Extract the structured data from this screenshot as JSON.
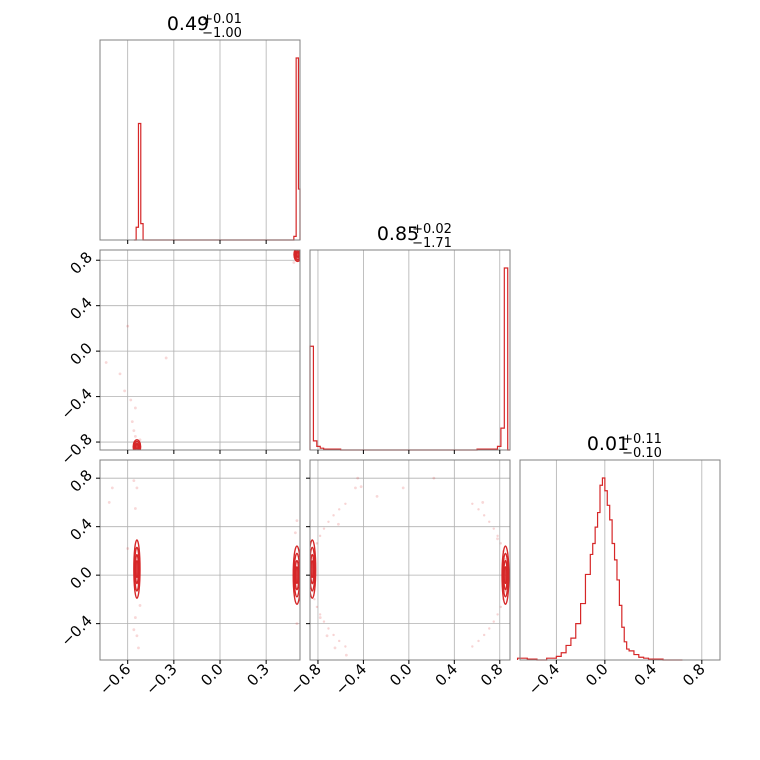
{
  "chart_data": {
    "type": "corner",
    "color": "#d62728",
    "grid": true,
    "parameters": [
      {
        "range": [
          -0.78,
          0.52
        ],
        "ticks": [
          -0.6,
          -0.3,
          0.0,
          0.3
        ],
        "tick_labels": [
          "−0.6",
          "−0.3",
          "0.0",
          "0.3"
        ],
        "summary": {
          "median": "0.49",
          "plus": "+0.01",
          "minus": "−1.00"
        },
        "histogram": {
          "bin_edges": [
            -0.56,
            -0.545,
            -0.53,
            -0.515,
            -0.5,
            -0.485,
            0.48,
            0.495,
            0.51,
            0.52
          ],
          "counts": [
            0.0,
            0.07,
            0.64,
            0.09,
            0.0,
            0.0,
            0.02,
            1.0,
            0.28
          ]
        }
      },
      {
        "range": [
          -0.87,
          0.89
        ],
        "ticks": [
          -0.8,
          -0.4,
          0.0,
          0.4,
          0.8
        ],
        "tick_labels": [
          "−0.8",
          "−0.4",
          "0.0",
          "0.4",
          "0.8"
        ],
        "summary": {
          "median": "0.85",
          "plus": "+0.02",
          "minus": "−1.71"
        },
        "histogram": {
          "bin_edges": [
            -0.87,
            -0.84,
            -0.81,
            -0.78,
            -0.75,
            -0.6,
            -0.4,
            0.4,
            0.6,
            0.78,
            0.81,
            0.84,
            0.87,
            0.89
          ],
          "counts": [
            0.57,
            0.05,
            0.02,
            0.01,
            0.005,
            0.0,
            0.0,
            0.0,
            0.005,
            0.02,
            0.12,
            1.0,
            0.0
          ]
        }
      },
      {
        "range": [
          -0.7,
          0.95
        ],
        "ticks": [
          -0.4,
          0.0,
          0.4,
          0.8
        ],
        "tick_labels": [
          "−0.4",
          "0.0",
          "0.4",
          "0.8"
        ],
        "y_ticks": [
          -0.4,
          0.0,
          0.4,
          0.8
        ],
        "y_range": [
          -0.7,
          0.95
        ],
        "summary": {
          "median": "0.01",
          "plus": "+0.11",
          "minus": "−0.10"
        },
        "histogram": {
          "bin_edges": [
            -0.72,
            -0.64,
            -0.56,
            -0.48,
            -0.4,
            -0.36,
            -0.32,
            -0.28,
            -0.24,
            -0.2,
            -0.16,
            -0.12,
            -0.1,
            -0.08,
            -0.06,
            -0.04,
            -0.02,
            0.0,
            0.02,
            0.04,
            0.06,
            0.08,
            0.1,
            0.12,
            0.14,
            0.16,
            0.18,
            0.2,
            0.24,
            0.28,
            0.32,
            0.36,
            0.4,
            0.48,
            0.56,
            0.64
          ],
          "counts": [
            0.01,
            0.005,
            0.0,
            0.01,
            0.02,
            0.04,
            0.08,
            0.12,
            0.2,
            0.31,
            0.47,
            0.58,
            0.64,
            0.73,
            0.81,
            0.96,
            1.0,
            0.93,
            0.85,
            0.77,
            0.64,
            0.55,
            0.44,
            0.3,
            0.18,
            0.1,
            0.06,
            0.05,
            0.03,
            0.015,
            0.01,
            0.005,
            0.005,
            0.0,
            0.0
          ]
        }
      }
    ],
    "pairs": [
      {
        "row": 1,
        "col": 0,
        "clusters": [
          {
            "x": -0.54,
            "y": -0.84,
            "sx": 0.012,
            "sy": 0.03
          },
          {
            "x": 0.505,
            "y": 0.85,
            "sx": 0.012,
            "sy": 0.03
          }
        ],
        "scatter": [
          [
            -0.6,
            0.22
          ],
          [
            -0.65,
            -0.2
          ],
          [
            -0.62,
            -0.35
          ],
          [
            -0.58,
            -0.43
          ],
          [
            -0.55,
            -0.5
          ],
          [
            -0.57,
            -0.62
          ],
          [
            -0.56,
            -0.7
          ],
          [
            -0.74,
            -0.1
          ],
          [
            -0.52,
            -0.78
          ],
          [
            -0.55,
            -0.75
          ],
          [
            -0.35,
            -0.06
          ],
          [
            0.48,
            0.78
          ]
        ]
      },
      {
        "row": 2,
        "col": 0,
        "clusters": [
          {
            "x": -0.54,
            "y": 0.05,
            "sx": 0.01,
            "sy": 0.12
          },
          {
            "x": 0.5,
            "y": 0.0,
            "sx": 0.012,
            "sy": 0.12
          }
        ],
        "scatter": [
          [
            -0.55,
            0.55
          ],
          [
            -0.54,
            0.72
          ],
          [
            -0.56,
            0.78
          ],
          [
            -0.6,
            0.22
          ],
          [
            -0.55,
            -0.35
          ],
          [
            -0.54,
            -0.5
          ],
          [
            -0.53,
            -0.6
          ],
          [
            -0.56,
            -0.45
          ],
          [
            -0.72,
            0.6
          ],
          [
            -0.7,
            0.72
          ],
          [
            0.5,
            0.45
          ],
          [
            0.49,
            0.35
          ],
          [
            0.5,
            -0.4
          ],
          [
            -0.52,
            -0.25
          ]
        ]
      },
      {
        "row": 2,
        "col": 1,
        "clusters": [
          {
            "x": -0.85,
            "y": 0.05,
            "sx": 0.015,
            "sy": 0.12
          },
          {
            "x": 0.85,
            "y": 0.0,
            "sx": 0.015,
            "sy": 0.12
          }
        ],
        "arcs": [
          {
            "cx": 0.0,
            "r": 0.86,
            "side": "left"
          },
          {
            "cx": 0.0,
            "r": 0.86,
            "side": "right"
          }
        ],
        "scatter": [
          [
            -0.45,
            0.8
          ],
          [
            -0.42,
            0.73
          ],
          [
            -0.28,
            0.65
          ],
          [
            -0.05,
            0.72
          ],
          [
            0.22,
            0.8
          ],
          [
            -0.47,
            0.72
          ],
          [
            -0.62,
            0.42
          ],
          [
            -0.78,
            -0.35
          ],
          [
            -0.72,
            -0.5
          ],
          [
            -0.65,
            -0.6
          ],
          [
            -0.55,
            -0.66
          ],
          [
            0.65,
            0.6
          ],
          [
            0.78,
            0.3
          ]
        ]
      }
    ]
  }
}
